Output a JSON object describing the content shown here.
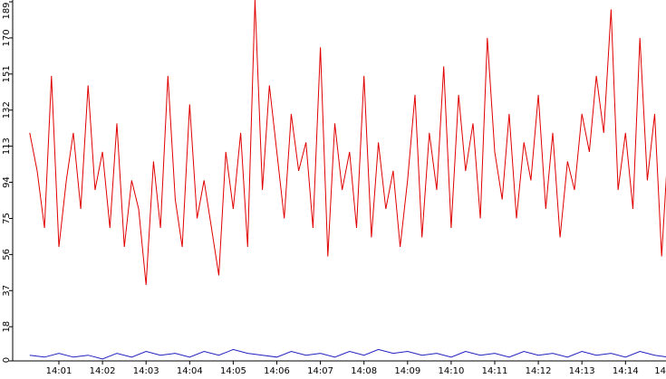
{
  "chart_data": {
    "type": "line",
    "title": "",
    "xlabel": "",
    "ylabel": "",
    "ylim": [
      0,
      189
    ],
    "y_ticks": [
      0,
      18,
      37,
      56,
      75,
      94,
      113,
      132,
      151,
      170,
      189
    ],
    "x_tick_labels": [
      "14:01",
      "14:02",
      "14:03",
      "14:04",
      "14:05",
      "14:06",
      "14:07",
      "14:08",
      "14:09",
      "14:10",
      "14:11",
      "14:12",
      "14:13",
      "14:14",
      "14"
    ],
    "x_range_minutes": [
      0.33,
      14.97
    ],
    "grid": false,
    "legend": "none",
    "series": [
      {
        "color": "#e00000",
        "x": [
          0.33,
          0.5,
          0.67,
          0.83,
          1.0,
          1.17,
          1.33,
          1.5,
          1.67,
          1.83,
          2.0,
          2.17,
          2.33,
          2.5,
          2.67,
          2.83,
          3.0,
          3.17,
          3.33,
          3.5,
          3.67,
          3.83,
          4.0,
          4.17,
          4.33,
          4.5,
          4.67,
          4.83,
          5.0,
          5.17,
          5.33,
          5.5,
          5.67,
          5.83,
          6.0,
          6.17,
          6.33,
          6.5,
          6.67,
          6.83,
          7.0,
          7.17,
          7.33,
          7.5,
          7.67,
          7.83,
          8.0,
          8.17,
          8.33,
          8.5,
          8.67,
          8.83,
          9.0,
          9.17,
          9.33,
          9.5,
          9.67,
          9.83,
          10.0,
          10.17,
          10.33,
          10.5,
          10.67,
          10.83,
          11.0,
          11.17,
          11.33,
          11.5,
          11.67,
          11.83,
          12.0,
          12.17,
          12.33,
          12.5,
          12.67,
          12.83,
          13.0,
          13.17,
          13.33,
          13.5,
          13.67,
          13.83,
          14.0,
          14.17,
          14.33,
          14.5,
          14.67,
          14.83,
          14.97
        ],
        "values": [
          120,
          100,
          70,
          150,
          60,
          95,
          120,
          80,
          145,
          90,
          110,
          70,
          125,
          60,
          95,
          80,
          40,
          105,
          70,
          150,
          85,
          60,
          135,
          75,
          95,
          70,
          45,
          110,
          80,
          120,
          60,
          190,
          90,
          145,
          110,
          75,
          130,
          100,
          115,
          70,
          165,
          55,
          125,
          90,
          110,
          70,
          150,
          65,
          115,
          80,
          100,
          60,
          95,
          140,
          65,
          120,
          90,
          155,
          70,
          140,
          100,
          125,
          75,
          170,
          110,
          85,
          130,
          75,
          115,
          95,
          140,
          80,
          120,
          65,
          105,
          90,
          130,
          110,
          150,
          120,
          185,
          90,
          120,
          80,
          170,
          95,
          130,
          55,
          110
        ]
      },
      {
        "color": "#2020c0",
        "x": [
          0.33,
          0.67,
          1.0,
          1.33,
          1.67,
          2.0,
          2.33,
          2.67,
          3.0,
          3.33,
          3.67,
          4.0,
          4.33,
          4.67,
          5.0,
          5.33,
          5.67,
          6.0,
          6.33,
          6.67,
          7.0,
          7.33,
          7.67,
          8.0,
          8.33,
          8.67,
          9.0,
          9.33,
          9.67,
          10.0,
          10.33,
          10.67,
          11.0,
          11.33,
          11.67,
          12.0,
          12.33,
          12.67,
          13.0,
          13.33,
          13.67,
          14.0,
          14.33,
          14.67,
          14.97
        ],
        "values": [
          3,
          2,
          4,
          2,
          3,
          1,
          4,
          2,
          5,
          3,
          4,
          2,
          5,
          3,
          6,
          4,
          3,
          2,
          5,
          3,
          4,
          2,
          5,
          3,
          6,
          4,
          5,
          3,
          4,
          2,
          5,
          3,
          4,
          2,
          5,
          3,
          4,
          2,
          5,
          3,
          4,
          2,
          5,
          3,
          2
        ]
      }
    ]
  }
}
